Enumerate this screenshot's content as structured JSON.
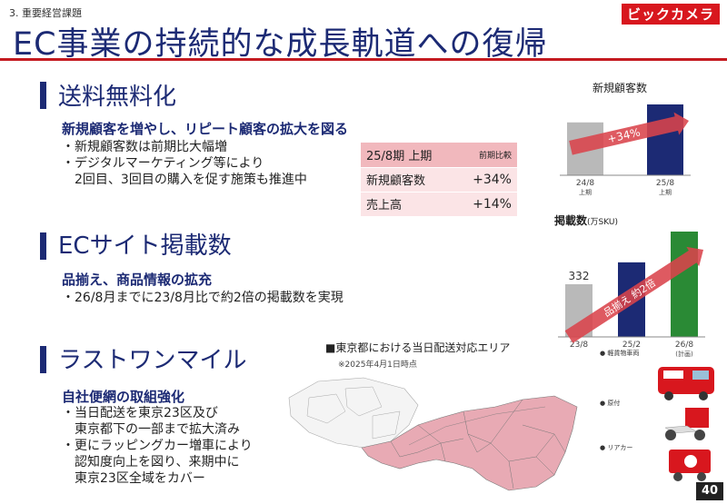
{
  "header": {
    "section": "3. 重要経営課題",
    "title": "EC事業の持続的な成長軌道への復帰",
    "logo": "ビックカメラ"
  },
  "sections": [
    {
      "heading": "送料無料化",
      "subheading": "新規顧客を増やし、リピート顧客の拡大を図る",
      "body": "・新規顧客数は前期比大幅増\n・デジタルマーケティング等により\n　2回目、3回目の購入を促す施策も推進中"
    },
    {
      "heading": "ECサイト掲載数",
      "subheading": "品揃え、商品情報の拡充",
      "body": "・26/8月までに23/8月比で約2倍の掲載数を実現"
    },
    {
      "heading": "ラストワンマイル",
      "subheading": "自社便網の取組強化",
      "body": "・当日配送を東京23区及び\n　東京都下の一部まで拡大済み\n・更にラッピングカー増車により\n　認知度向上を図り、来期中に\n　東京23区全域をカバー"
    }
  ],
  "comparison_table": {
    "header": "25/8期 上期",
    "header_note": "前期比較",
    "rows": [
      {
        "label": "新規顧客数",
        "value": "+34%"
      },
      {
        "label": "売上高",
        "value": "+14%"
      }
    ]
  },
  "chart_data": [
    {
      "type": "bar",
      "title": "新規顧客数",
      "categories": [
        "24/8\n上期",
        "25/8\n上期"
      ],
      "values": [
        56,
        75
      ],
      "arrow_label": "+34%",
      "colors": [
        "#b9b9b9",
        "#1c2a74"
      ]
    },
    {
      "type": "bar",
      "title": "掲載数",
      "title_unit": "(万SKU)",
      "categories": [
        "23/8",
        "25/2",
        "26/8\n(計画)"
      ],
      "values": [
        332,
        470,
        664
      ],
      "data_labels": [
        "332",
        "",
        ""
      ],
      "arrow_label": "品揃え 約2倍",
      "colors": [
        "#b9b9b9",
        "#1c2a74",
        "#2a8a35"
      ]
    }
  ],
  "map": {
    "title": "■東京都における当日配送対応エリア",
    "note": "※2025年4月1日時点"
  },
  "vehicles": [
    {
      "label": "● 軽貨物車両"
    },
    {
      "label": "● 原付"
    },
    {
      "label": "● リアカー"
    }
  ],
  "page_number": "40",
  "colors": {
    "navy": "#1c2a74",
    "red": "#c41a20",
    "green": "#2a8a35",
    "gray": "#b9b9b9",
    "pink": "#e8aab4"
  }
}
